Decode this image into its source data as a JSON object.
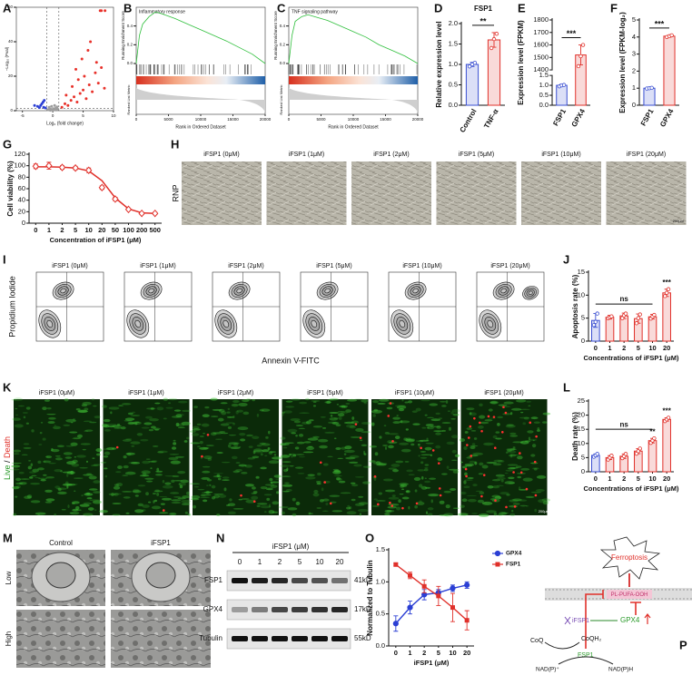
{
  "panel_letters": [
    "A",
    "B",
    "C",
    "D",
    "E",
    "F",
    "G",
    "H",
    "I",
    "J",
    "K",
    "L",
    "M",
    "N",
    "O",
    "P"
  ],
  "chart_data": [
    {
      "type": "scatter",
      "frame": true,
      "xlabel": "Log₂ (fold change)",
      "ylabel": "−Log₁₀ (Pval)",
      "xlim": [
        -6,
        10
      ],
      "ylim": [
        0,
        60
      ],
      "xticks": [
        -5,
        0,
        5,
        10
      ],
      "yticks": [
        0,
        20,
        40,
        60
      ],
      "vlines": [
        -1,
        1
      ],
      "hlines": [
        1.3
      ],
      "series": [
        {
          "color": "#9e9e9e",
          "x": [
            -0.8,
            -0.5,
            -0.3,
            0,
            0.2,
            0.4,
            0.6,
            0.8,
            -0.6,
            0.3,
            0.5,
            -0.2,
            0.1,
            0.7,
            -0.4
          ],
          "y": [
            0.5,
            1,
            0.8,
            0.3,
            0.6,
            1.1,
            0.4,
            0.9,
            2,
            3,
            1.5,
            2.5,
            1.2,
            2.2,
            0.2
          ]
        },
        {
          "color": "#2b3fd4",
          "x": [
            -1.5,
            -2,
            -1.2,
            -2.5,
            -1.8,
            -3,
            -1.4,
            -2.2,
            -1.6
          ],
          "y": [
            2,
            3,
            1.6,
            2.5,
            4,
            3,
            6,
            1.8,
            5
          ]
        },
        {
          "color": "#e8312a",
          "x": [
            1.5,
            2,
            2.5,
            3,
            3.5,
            4,
            4.5,
            5,
            5.5,
            6,
            2.2,
            3.2,
            4.2,
            5.2,
            6.5,
            7,
            7.5,
            8,
            8.5,
            4.8,
            5.8,
            3.8,
            6.2,
            7.2,
            8,
            7.8,
            8.6
          ],
          "y": [
            2,
            4,
            3,
            6,
            8,
            5,
            10,
            12,
            7,
            15,
            9,
            14,
            18,
            20,
            11,
            22,
            16,
            25,
            13,
            30,
            35,
            24,
            40,
            28,
            58,
            58,
            58
          ]
        }
      ]
    },
    {
      "type": "line",
      "frame": true,
      "title": "Inflammatory response",
      "ylabel": "Running Enrichment Score",
      "xlabel": "Rank in Ordered Dataset",
      "metric_label": "Ranked List Metric",
      "x": [
        0,
        500,
        1000,
        2000,
        3000,
        4000,
        6000,
        8000,
        10000,
        12000,
        14000,
        16000,
        18000,
        20000
      ],
      "xlim": [
        0,
        20000
      ],
      "xticks": [
        0,
        5000,
        10000,
        15000,
        20000
      ],
      "ylim": [
        0,
        0.6
      ],
      "yticks": [
        {
          "value": 0,
          "label": "0.0"
        },
        0.2,
        0.4
      ],
      "series": [
        {
          "color": "#2fbf3c",
          "values": [
            0,
            0.3,
            0.42,
            0.5,
            0.55,
            0.53,
            0.48,
            0.42,
            0.36,
            0.3,
            0.24,
            0.17,
            0.1,
            0
          ]
        }
      ]
    },
    {
      "type": "line",
      "frame": true,
      "title": "TNF signaling pathway",
      "ylabel": "Running Enrichment Score",
      "xlabel": "Rank in Ordered Dataset",
      "metric_label": "Ranked List Metric",
      "x": [
        0,
        500,
        1000,
        2000,
        3000,
        4000,
        6000,
        8000,
        10000,
        12000,
        14000,
        16000,
        18000,
        20000
      ],
      "xlim": [
        0,
        20000
      ],
      "xticks": [
        0,
        5000,
        10000,
        15000,
        20000
      ],
      "ylim": [
        0,
        0.6
      ],
      "yticks": [
        {
          "value": 0,
          "label": "0.0"
        },
        0.2,
        0.4
      ],
      "series": [
        {
          "color": "#2fbf3c",
          "values": [
            0,
            0.3,
            0.45,
            0.5,
            0.52,
            0.5,
            0.46,
            0.4,
            0.34,
            0.28,
            0.2,
            0.14,
            0.08,
            0
          ]
        }
      ]
    },
    {
      "type": "bar",
      "title": "FSP1",
      "ylabel": "Relative expression level",
      "categories": [
        "Control",
        "TNF-α"
      ],
      "colors": [
        "#3a4fd1",
        "#e0302a"
      ],
      "values": [
        1.0,
        1.6
      ],
      "errors": [
        0.05,
        0.18
      ],
      "points": [
        [
          0.95,
          1.0,
          1.04
        ],
        [
          1.4,
          1.62,
          1.75
        ]
      ],
      "ylim": [
        0,
        2
      ],
      "yticks": [
        {
          "value": 0,
          "label": "0.0"
        },
        0.5,
        {
          "value": 1,
          "label": "1.0"
        },
        1.5,
        {
          "value": 2,
          "label": "2.0"
        }
      ],
      "significance": "**"
    },
    {
      "type": "bar",
      "ylabel": "Expression level (FPKM)",
      "categories": [
        "FSP1",
        "GPX4"
      ],
      "colors": [
        "#3a4fd1",
        "#e0302a"
      ],
      "values": [
        1.0,
        1520
      ],
      "errors": [
        0.05,
        80
      ],
      "points": [
        [
          0.95,
          1.0,
          1.02
        ],
        [
          1430,
          1510,
          1600
        ]
      ],
      "ylim": [
        0,
        1800
      ],
      "ybreak": [
        1.5,
        1400
      ],
      "yticks": [
        {
          "value": 0,
          "label": "0.0"
        },
        0.5,
        {
          "value": 1,
          "label": "1.0"
        },
        1.5,
        1400,
        1500,
        1600,
        1700,
        1800
      ],
      "significance": "***"
    },
    {
      "type": "bar",
      "ylabel": "Expression level (FPKM-log₂)",
      "categories": [
        "FSP1",
        "GPX4"
      ],
      "colors": [
        "#3a4fd1",
        "#e0302a"
      ],
      "values": [
        1.0,
        4.05
      ],
      "errors": [
        0.03,
        0.05
      ],
      "points": [
        [
          0.98,
          1.0,
          1.02
        ],
        [
          4.0,
          4.05,
          4.1
        ]
      ],
      "ylim": [
        0,
        5
      ],
      "yticks": [
        0,
        1,
        2,
        3,
        4,
        5
      ],
      "significance": "***"
    },
    {
      "type": "line",
      "ylabel": "Cell viability (%)",
      "xlabel": "Concentration of iFSP1 (μM)",
      "categories": [
        "0",
        "1",
        "2",
        "5",
        "10",
        "20",
        "50",
        "100",
        "200",
        "500"
      ],
      "ylim": [
        0,
        120
      ],
      "yticks": [
        0,
        20,
        40,
        60,
        80,
        100,
        120
      ],
      "fit_values": [
        98,
        98,
        97.5,
        96,
        91,
        74,
        44,
        25,
        18,
        17
      ],
      "fit_color": "#e0302a",
      "series": [
        {
          "color": "#e0302a",
          "marker": "diamond",
          "line": false,
          "values": [
            99,
            100,
            97,
            96,
            92,
            62,
            42,
            24,
            17,
            17
          ],
          "errors": [
            4,
            6,
            3,
            3,
            4,
            3,
            3,
            2,
            2,
            2
          ]
        }
      ]
    },
    {
      "type": "bar",
      "ylabel": "Apoptosis rate (%)",
      "xlabel": "Concentrations of iFSP1 (μM)",
      "categories": [
        "0",
        "1",
        "2",
        "5",
        "10",
        "20"
      ],
      "colors": [
        "#3a4fd1",
        "#e0302a",
        "#e0302a",
        "#e0302a",
        "#e0302a",
        "#e0302a"
      ],
      "values": [
        4.5,
        5.2,
        5.5,
        4.9,
        5.3,
        10.5
      ],
      "errors": [
        1.5,
        0.4,
        0.6,
        1.0,
        0.5,
        0.8
      ],
      "points": [
        [
          3.5,
          4.2,
          6.0
        ],
        [
          5.0,
          5.2,
          5.4
        ],
        [
          5.0,
          5.6,
          6.0
        ],
        [
          3.9,
          5.0,
          5.8
        ],
        [
          4.9,
          5.3,
          5.7
        ],
        [
          9.8,
          10.5,
          11.3
        ]
      ],
      "ylim": [
        0,
        15
      ],
      "yticks": [
        0,
        5,
        10,
        15
      ],
      "group_label": "ns",
      "bar_labels": [
        null,
        null,
        null,
        null,
        null,
        "***"
      ]
    },
    {
      "type": "bar",
      "ylabel": "Death rate (%)",
      "xlabel": "Concentrations of iFSP1 (μM)",
      "categories": [
        "0",
        "1",
        "2",
        "5",
        "10",
        "20"
      ],
      "colors": [
        "#3a4fd1",
        "#e0302a",
        "#e0302a",
        "#e0302a",
        "#e0302a",
        "#e0302a"
      ],
      "values": [
        5.8,
        5.0,
        5.5,
        7.3,
        11,
        18.5
      ],
      "errors": [
        0.5,
        0.7,
        0.8,
        0.9,
        0.8,
        0.6
      ],
      "points": [
        [
          5.3,
          5.8,
          6.3
        ],
        [
          4.3,
          5.0,
          5.7
        ],
        [
          4.8,
          5.5,
          6.3
        ],
        [
          6.4,
          7.3,
          8.2
        ],
        [
          10.2,
          11,
          11.8
        ],
        [
          17.9,
          18.5,
          19.1
        ]
      ],
      "ylim": [
        0,
        25
      ],
      "yticks": [
        0,
        5,
        10,
        15,
        20,
        25
      ],
      "group_label": "ns",
      "bar_labels": [
        null,
        null,
        null,
        null,
        "**",
        "***"
      ]
    },
    {
      "type": "line",
      "ylabel": "Normalized to Tubulin",
      "xlabel": "iFSP1 (μM)",
      "categories": [
        "0",
        "1",
        "2",
        "5",
        "10",
        "20"
      ],
      "ylim": [
        0,
        1.5
      ],
      "yticks": [
        {
          "value": 0,
          "label": "0.0"
        },
        0.5,
        {
          "value": 1,
          "label": "1.0"
        },
        1.5
      ],
      "legend": "right",
      "series": [
        {
          "name": "GPX4",
          "color": "#2b3fd4",
          "marker": "circle",
          "line": true,
          "values": [
            0.35,
            0.6,
            0.8,
            0.83,
            0.9,
            0.95
          ],
          "errors": [
            0.12,
            0.1,
            0.08,
            0.05,
            0.05,
            0.05
          ]
        },
        {
          "name": "FSP1",
          "color": "#e0302a",
          "marker": "square",
          "line": true,
          "values": [
            1.27,
            1.1,
            0.93,
            0.78,
            0.6,
            0.4
          ],
          "errors": [
            0.02,
            0.05,
            0.1,
            0.15,
            0.22,
            0.15
          ]
        }
      ]
    }
  ],
  "microscopy": {
    "labels": [
      "iFSP1 (0μM)",
      "iFSP1 (1μM)",
      "iFSP1 (2μM)",
      "iFSP1 (5μM)",
      "iFSP1 (10μM)",
      "iFSP1 (20μM)"
    ],
    "row_label": "RNP",
    "scale_bar": "200μm"
  },
  "flow": {
    "labels": [
      "iFSP1 (0μM)",
      "iFSP1 (1μM)",
      "iFSP1 (2μM)",
      "iFSP1 (5μM)",
      "iFSP1 (10μM)",
      "iFSP1 (20μM)"
    ],
    "ylabel": "Propidium Iodide",
    "xlabel": "Annexin V-FITC"
  },
  "fluorescence": {
    "labels": [
      "iFSP1 (0μM)",
      "iFSP1 (1μM)",
      "iFSP1 (2μM)",
      "iFSP1 (5μM)",
      "iFSP1 (10μM)",
      "iFSP1 (20μM)"
    ],
    "live": "Live",
    "slash": " / ",
    "death": "Death",
    "scale_bar": "200μm"
  },
  "tem": {
    "columns": [
      "Control",
      "iFSP1"
    ],
    "rows": [
      "Low",
      "High"
    ]
  },
  "blot": {
    "title": "iFSP1 (μM)",
    "lanes": [
      "0",
      "1",
      "2",
      "5",
      "10",
      "20"
    ],
    "rows": [
      {
        "name": "FSP1",
        "size": "41kD"
      },
      {
        "name": "GPX4",
        "size": "17kD"
      },
      {
        "name": "Tubulin",
        "size": "55kD"
      }
    ]
  },
  "diagram": {
    "ferroptosis": "Ferroptosis",
    "lipid": "PL-PUFA-OOH",
    "inhibitor": "iFSP1",
    "gpx4": "GPX4",
    "coq": "CoQ",
    "coqh2": "CoQH₂",
    "fsp1": "FSP1",
    "nadp": "NAD(P)⁺",
    "nadph": "NAD(P)H"
  }
}
